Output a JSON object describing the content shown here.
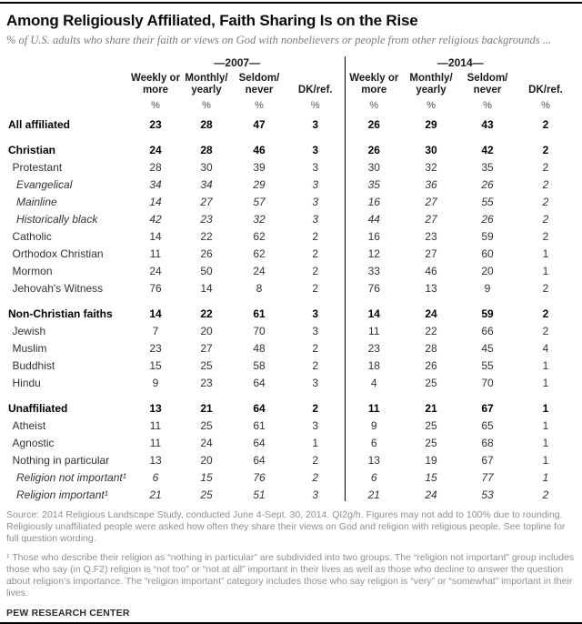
{
  "header": {
    "title": "Among Religiously Affiliated, Faith Sharing Is on the Rise",
    "subtitle": "% of U.S. adults who share their faith or views on God with nonbelievers or people from other religious backgrounds ..."
  },
  "chart_data": {
    "type": "table",
    "title": "Among Religiously Affiliated, Faith Sharing Is on the Rise",
    "subtitle": "% of U.S. adults who share their faith or views on God with nonbelievers or people from other religious backgrounds ...",
    "column_groups": [
      {
        "label": "—2007—"
      },
      {
        "label": "—2014—"
      }
    ],
    "columns": [
      "Weekly or\nmore",
      "Monthly/\nyearly",
      "Seldom/\nnever",
      "DK/ref.",
      "Weekly or\nmore",
      "Monthly/\nyearly",
      "Seldom/\nnever",
      "DK/ref."
    ],
    "unit_symbol": "%",
    "rows": [
      {
        "label": "All affiliated",
        "emphasis": "bold",
        "indent": 0,
        "gap_before": false,
        "values_2007": [
          23,
          28,
          47,
          3
        ],
        "values_2014": [
          26,
          29,
          43,
          2
        ]
      },
      {
        "label": "Christian",
        "emphasis": "bold",
        "indent": 0,
        "gap_before": true,
        "values_2007": [
          24,
          28,
          46,
          3
        ],
        "values_2014": [
          26,
          30,
          42,
          2
        ]
      },
      {
        "label": "Protestant",
        "emphasis": "plain",
        "indent": 1,
        "gap_before": false,
        "values_2007": [
          28,
          30,
          39,
          3
        ],
        "values_2014": [
          30,
          32,
          35,
          2
        ]
      },
      {
        "label": "Evangelical",
        "emphasis": "italic",
        "indent": 2,
        "gap_before": false,
        "values_2007": [
          34,
          34,
          29,
          3
        ],
        "values_2014": [
          35,
          36,
          26,
          2
        ]
      },
      {
        "label": "Mainline",
        "emphasis": "italic",
        "indent": 2,
        "gap_before": false,
        "values_2007": [
          14,
          27,
          57,
          3
        ],
        "values_2014": [
          16,
          27,
          55,
          2
        ]
      },
      {
        "label": "Historically black",
        "emphasis": "italic",
        "indent": 2,
        "gap_before": false,
        "values_2007": [
          42,
          23,
          32,
          3
        ],
        "values_2014": [
          44,
          27,
          26,
          2
        ]
      },
      {
        "label": "Catholic",
        "emphasis": "plain",
        "indent": 1,
        "gap_before": false,
        "values_2007": [
          14,
          22,
          62,
          2
        ],
        "values_2014": [
          16,
          23,
          59,
          2
        ]
      },
      {
        "label": "Orthodox Christian",
        "emphasis": "plain",
        "indent": 1,
        "gap_before": false,
        "values_2007": [
          11,
          26,
          62,
          2
        ],
        "values_2014": [
          12,
          27,
          60,
          1
        ]
      },
      {
        "label": "Mormon",
        "emphasis": "plain",
        "indent": 1,
        "gap_before": false,
        "values_2007": [
          24,
          50,
          24,
          2
        ],
        "values_2014": [
          33,
          46,
          20,
          1
        ]
      },
      {
        "label": "Jehovah's Witness",
        "emphasis": "plain",
        "indent": 1,
        "gap_before": false,
        "values_2007": [
          76,
          14,
          8,
          2
        ],
        "values_2014": [
          76,
          13,
          9,
          2
        ]
      },
      {
        "label": "Non-Christian faiths",
        "emphasis": "bold",
        "indent": 0,
        "gap_before": true,
        "values_2007": [
          14,
          22,
          61,
          3
        ],
        "values_2014": [
          14,
          24,
          59,
          2
        ]
      },
      {
        "label": "Jewish",
        "emphasis": "plain",
        "indent": 1,
        "gap_before": false,
        "values_2007": [
          7,
          20,
          70,
          3
        ],
        "values_2014": [
          11,
          22,
          66,
          2
        ]
      },
      {
        "label": "Muslim",
        "emphasis": "plain",
        "indent": 1,
        "gap_before": false,
        "values_2007": [
          23,
          27,
          48,
          2
        ],
        "values_2014": [
          23,
          28,
          45,
          4
        ]
      },
      {
        "label": "Buddhist",
        "emphasis": "plain",
        "indent": 1,
        "gap_before": false,
        "values_2007": [
          15,
          25,
          58,
          2
        ],
        "values_2014": [
          18,
          26,
          55,
          1
        ]
      },
      {
        "label": "Hindu",
        "emphasis": "plain",
        "indent": 1,
        "gap_before": false,
        "values_2007": [
          9,
          23,
          64,
          3
        ],
        "values_2014": [
          4,
          25,
          70,
          1
        ]
      },
      {
        "label": "Unaffiliated",
        "emphasis": "bold",
        "indent": 0,
        "gap_before": true,
        "values_2007": [
          13,
          21,
          64,
          2
        ],
        "values_2014": [
          11,
          21,
          67,
          1
        ]
      },
      {
        "label": "Atheist",
        "emphasis": "plain",
        "indent": 1,
        "gap_before": false,
        "values_2007": [
          11,
          25,
          61,
          3
        ],
        "values_2014": [
          9,
          25,
          65,
          1
        ]
      },
      {
        "label": "Agnostic",
        "emphasis": "plain",
        "indent": 1,
        "gap_before": false,
        "values_2007": [
          11,
          24,
          64,
          1
        ],
        "values_2014": [
          6,
          25,
          68,
          1
        ]
      },
      {
        "label": "Nothing in particular",
        "emphasis": "plain",
        "indent": 1,
        "gap_before": false,
        "values_2007": [
          13,
          20,
          64,
          2
        ],
        "values_2014": [
          13,
          19,
          67,
          1
        ]
      },
      {
        "label": "Religion not important¹",
        "emphasis": "italic",
        "indent": 2,
        "gap_before": false,
        "values_2007": [
          6,
          15,
          76,
          2
        ],
        "values_2014": [
          6,
          15,
          77,
          1
        ]
      },
      {
        "label": "Religion important¹",
        "emphasis": "italic",
        "indent": 2,
        "gap_before": false,
        "values_2007": [
          21,
          25,
          51,
          3
        ],
        "values_2014": [
          21,
          24,
          53,
          2
        ]
      }
    ]
  },
  "notes": {
    "source": "Source: 2014 Religious Landscape Study, conducted June 4-Sept. 30, 2014. QI2g/h. Figures may not add to 100% due to rounding. Religiously unaffiliated people were asked how often they share their views on God and religion with religious people. See topline for full question wording.",
    "footnote": "¹ Those who describe their religion as “nothing in particular” are subdivided into two groups. The “religion not important” group includes those who say (in Q.F2) religion is “not too” or “not at all” important in their lives as well as those who decline to answer the question about religion’s importance. The “religion important” category includes those who say religion is “very” or “somewhat” important in their lives."
  },
  "footer": {
    "brand": "PEW RESEARCH CENTER"
  }
}
